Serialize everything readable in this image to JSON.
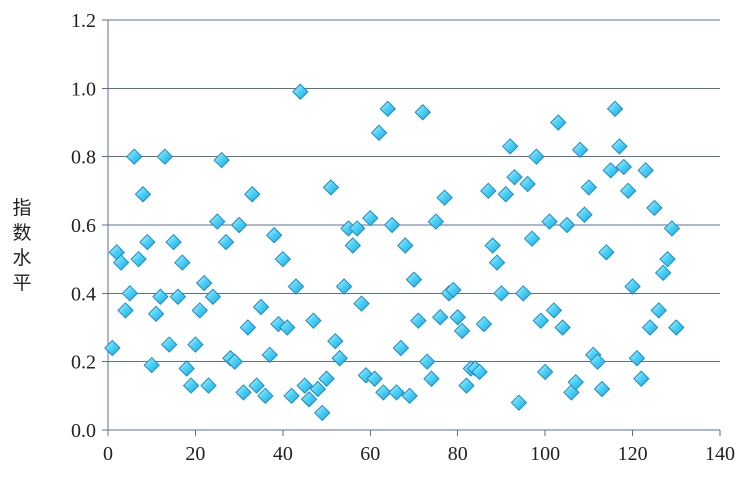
{
  "chart_data": {
    "type": "scatter",
    "title": "",
    "xlabel": "",
    "ylabel": "指数水平",
    "xlim": [
      0,
      140
    ],
    "ylim": [
      0,
      1.2
    ],
    "x_ticks": [
      "0",
      "20",
      "40",
      "60",
      "80",
      "100",
      "120",
      "140"
    ],
    "y_ticks": [
      "0.0",
      "0.2",
      "0.4",
      "0.6",
      "0.8",
      "1.0",
      "1.2"
    ],
    "grid": "horizontal",
    "legend": "none",
    "marker": "diamond",
    "marker_color": "#4fd3f5",
    "marker_edge_color": "#1e88c8",
    "grid_color": "#5b6f95",
    "series": [
      {
        "points": [
          [
            1,
            0.24
          ],
          [
            2,
            0.52
          ],
          [
            3,
            0.49
          ],
          [
            4,
            0.35
          ],
          [
            5,
            0.4
          ],
          [
            6,
            0.8
          ],
          [
            7,
            0.5
          ],
          [
            8,
            0.69
          ],
          [
            9,
            0.55
          ],
          [
            10,
            0.19
          ],
          [
            11,
            0.34
          ],
          [
            12,
            0.39
          ],
          [
            13,
            0.8
          ],
          [
            14,
            0.25
          ],
          [
            15,
            0.55
          ],
          [
            16,
            0.39
          ],
          [
            17,
            0.49
          ],
          [
            18,
            0.18
          ],
          [
            19,
            0.13
          ],
          [
            20,
            0.25
          ],
          [
            21,
            0.35
          ],
          [
            22,
            0.43
          ],
          [
            23,
            0.13
          ],
          [
            24,
            0.39
          ],
          [
            25,
            0.61
          ],
          [
            26,
            0.79
          ],
          [
            27,
            0.55
          ],
          [
            28,
            0.21
          ],
          [
            29,
            0.2
          ],
          [
            30,
            0.6
          ],
          [
            31,
            0.11
          ],
          [
            32,
            0.3
          ],
          [
            33,
            0.69
          ],
          [
            34,
            0.13
          ],
          [
            35,
            0.36
          ],
          [
            36,
            0.1
          ],
          [
            37,
            0.22
          ],
          [
            38,
            0.57
          ],
          [
            39,
            0.31
          ],
          [
            40,
            0.5
          ],
          [
            41,
            0.3
          ],
          [
            42,
            0.1
          ],
          [
            43,
            0.42
          ],
          [
            44,
            0.99
          ],
          [
            45,
            0.13
          ],
          [
            46,
            0.09
          ],
          [
            47,
            0.32
          ],
          [
            48,
            0.12
          ],
          [
            49,
            0.05
          ],
          [
            50,
            0.15
          ],
          [
            51,
            0.71
          ],
          [
            52,
            0.26
          ],
          [
            53,
            0.21
          ],
          [
            54,
            0.42
          ],
          [
            55,
            0.59
          ],
          [
            56,
            0.54
          ],
          [
            57,
            0.59
          ],
          [
            58,
            0.37
          ],
          [
            59,
            0.16
          ],
          [
            60,
            0.62
          ],
          [
            61,
            0.15
          ],
          [
            62,
            0.87
          ],
          [
            63,
            0.11
          ],
          [
            64,
            0.94
          ],
          [
            65,
            0.6
          ],
          [
            66,
            0.11
          ],
          [
            67,
            0.24
          ],
          [
            68,
            0.54
          ],
          [
            69,
            0.1
          ],
          [
            70,
            0.44
          ],
          [
            71,
            0.32
          ],
          [
            72,
            0.93
          ],
          [
            73,
            0.2
          ],
          [
            74,
            0.15
          ],
          [
            75,
            0.61
          ],
          [
            76,
            0.33
          ],
          [
            77,
            0.68
          ],
          [
            78,
            0.4
          ],
          [
            79,
            0.41
          ],
          [
            80,
            0.33
          ],
          [
            81,
            0.29
          ],
          [
            82,
            0.13
          ],
          [
            83,
            0.18
          ],
          [
            84,
            0.18
          ],
          [
            85,
            0.17
          ],
          [
            86,
            0.31
          ],
          [
            87,
            0.7
          ],
          [
            88,
            0.54
          ],
          [
            89,
            0.49
          ],
          [
            90,
            0.4
          ],
          [
            91,
            0.69
          ],
          [
            92,
            0.83
          ],
          [
            93,
            0.74
          ],
          [
            94,
            0.08
          ],
          [
            95,
            0.4
          ],
          [
            96,
            0.72
          ],
          [
            97,
            0.56
          ],
          [
            98,
            0.8
          ],
          [
            99,
            0.32
          ],
          [
            100,
            0.17
          ],
          [
            101,
            0.61
          ],
          [
            102,
            0.35
          ],
          [
            103,
            0.9
          ],
          [
            104,
            0.3
          ],
          [
            105,
            0.6
          ],
          [
            106,
            0.11
          ],
          [
            107,
            0.14
          ],
          [
            108,
            0.82
          ],
          [
            109,
            0.63
          ],
          [
            110,
            0.71
          ],
          [
            111,
            0.22
          ],
          [
            112,
            0.2
          ],
          [
            113,
            0.12
          ],
          [
            114,
            0.52
          ],
          [
            115,
            0.76
          ],
          [
            116,
            0.94
          ],
          [
            117,
            0.83
          ],
          [
            118,
            0.77
          ],
          [
            119,
            0.7
          ],
          [
            120,
            0.42
          ],
          [
            121,
            0.21
          ],
          [
            122,
            0.15
          ],
          [
            123,
            0.76
          ],
          [
            124,
            0.3
          ],
          [
            125,
            0.65
          ],
          [
            126,
            0.35
          ],
          [
            127,
            0.46
          ],
          [
            128,
            0.5
          ],
          [
            129,
            0.59
          ],
          [
            130,
            0.3
          ]
        ]
      }
    ]
  }
}
